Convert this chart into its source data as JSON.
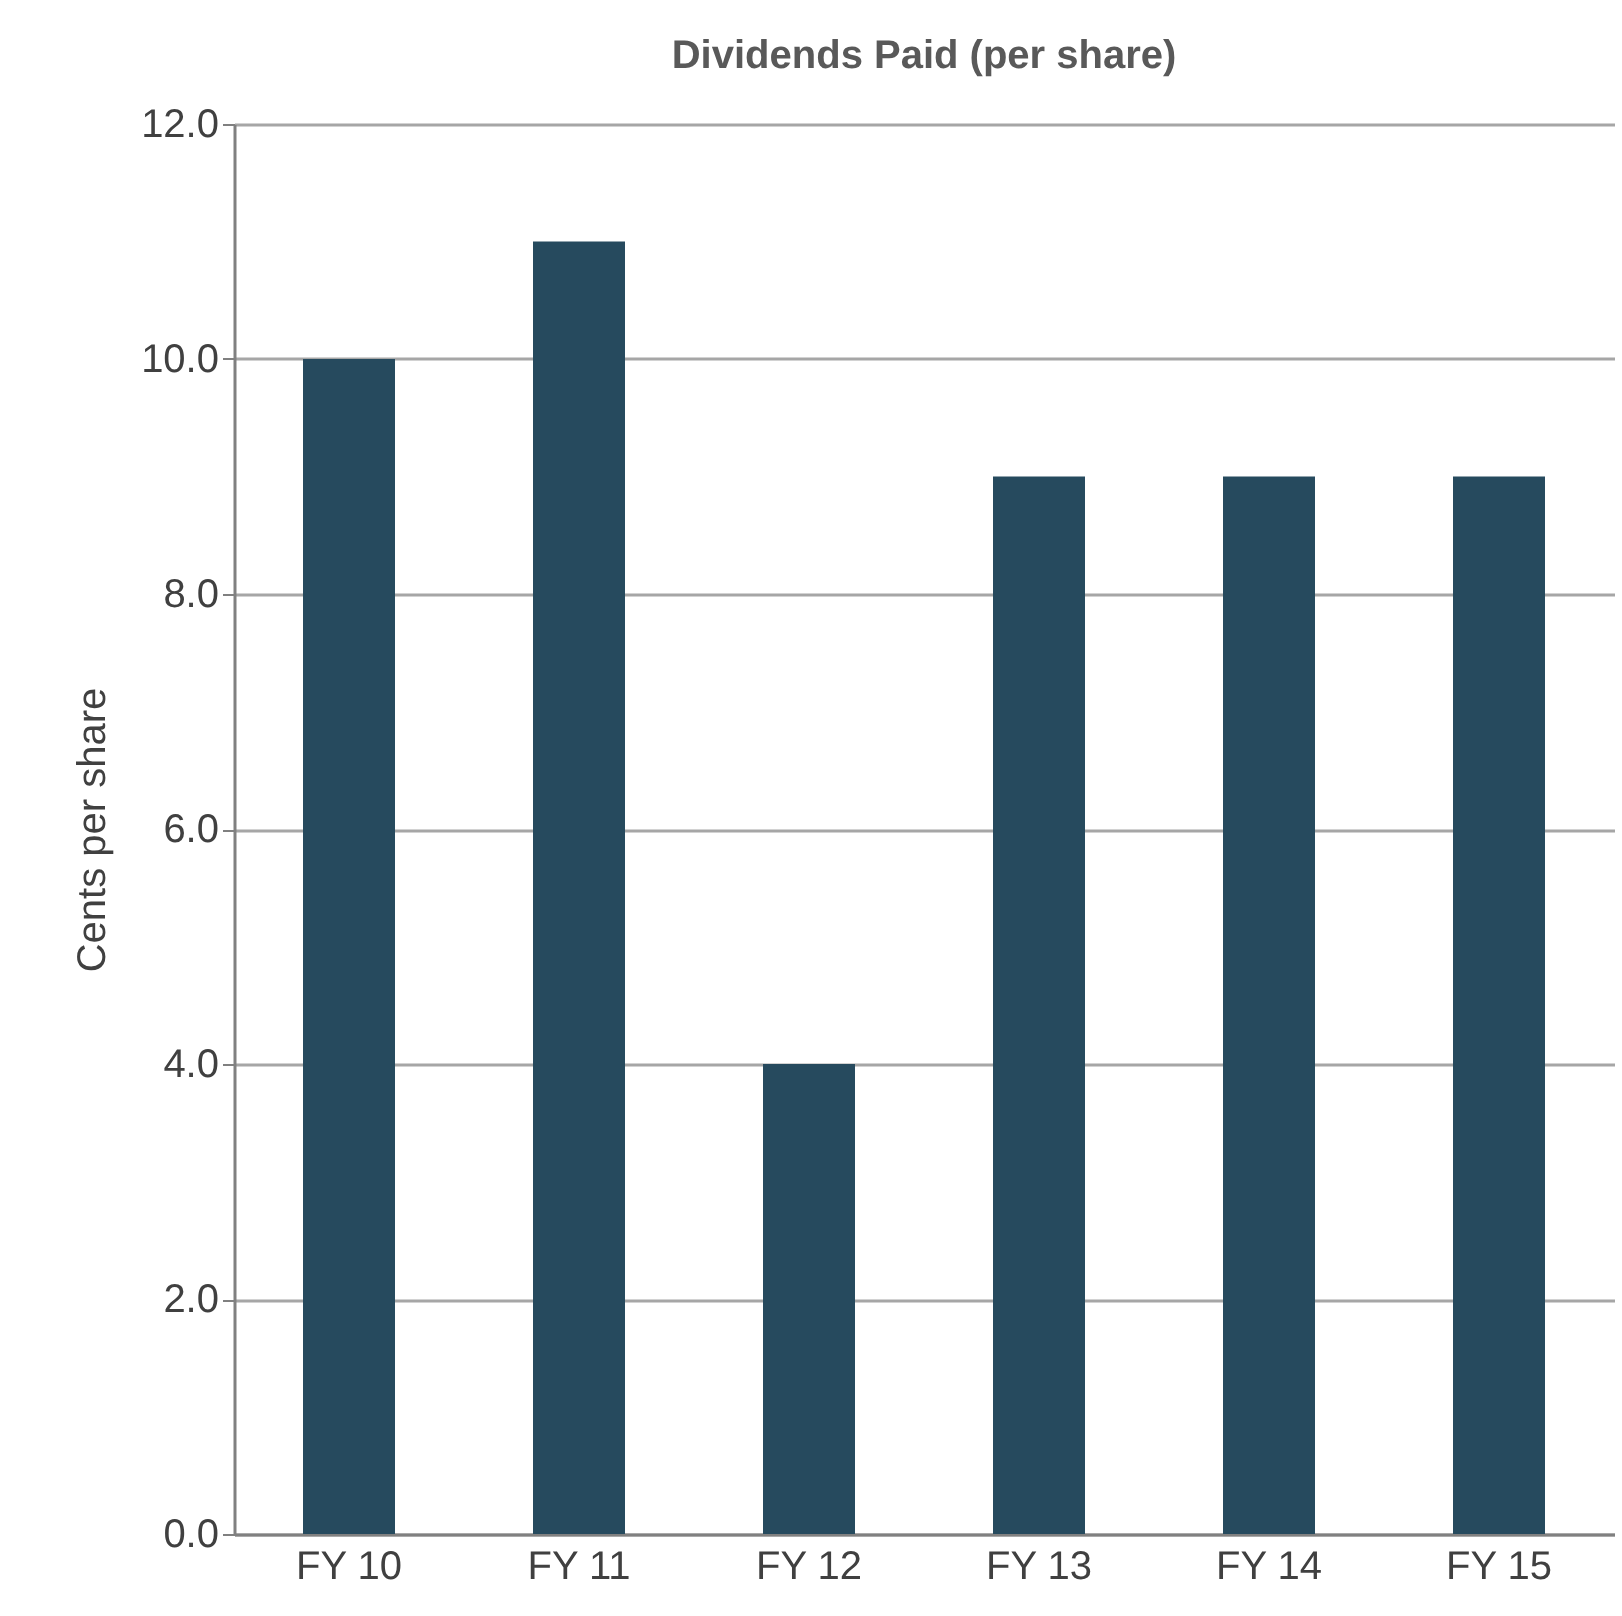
{
  "chart_data": {
    "type": "bar",
    "title": "Dividends Paid (per share)",
    "ylabel": "Cents per share",
    "categories": [
      "FY 10",
      "FY 11",
      "FY 12",
      "FY 13",
      "FY 14",
      "FY 15"
    ],
    "values": [
      10,
      11,
      4,
      9,
      9,
      9
    ],
    "color": "#264a5e",
    "ylim": [
      0,
      12
    ],
    "yticks": [
      {
        "value": 0,
        "label": "0.0"
      },
      {
        "value": 2,
        "label": "2.0"
      },
      {
        "value": 4,
        "label": "4.0"
      },
      {
        "value": 6,
        "label": "6.0"
      },
      {
        "value": 8,
        "label": "8.0"
      },
      {
        "value": 10,
        "label": "10.0"
      },
      {
        "value": 12,
        "label": "12.0"
      }
    ],
    "grid": "y"
  }
}
